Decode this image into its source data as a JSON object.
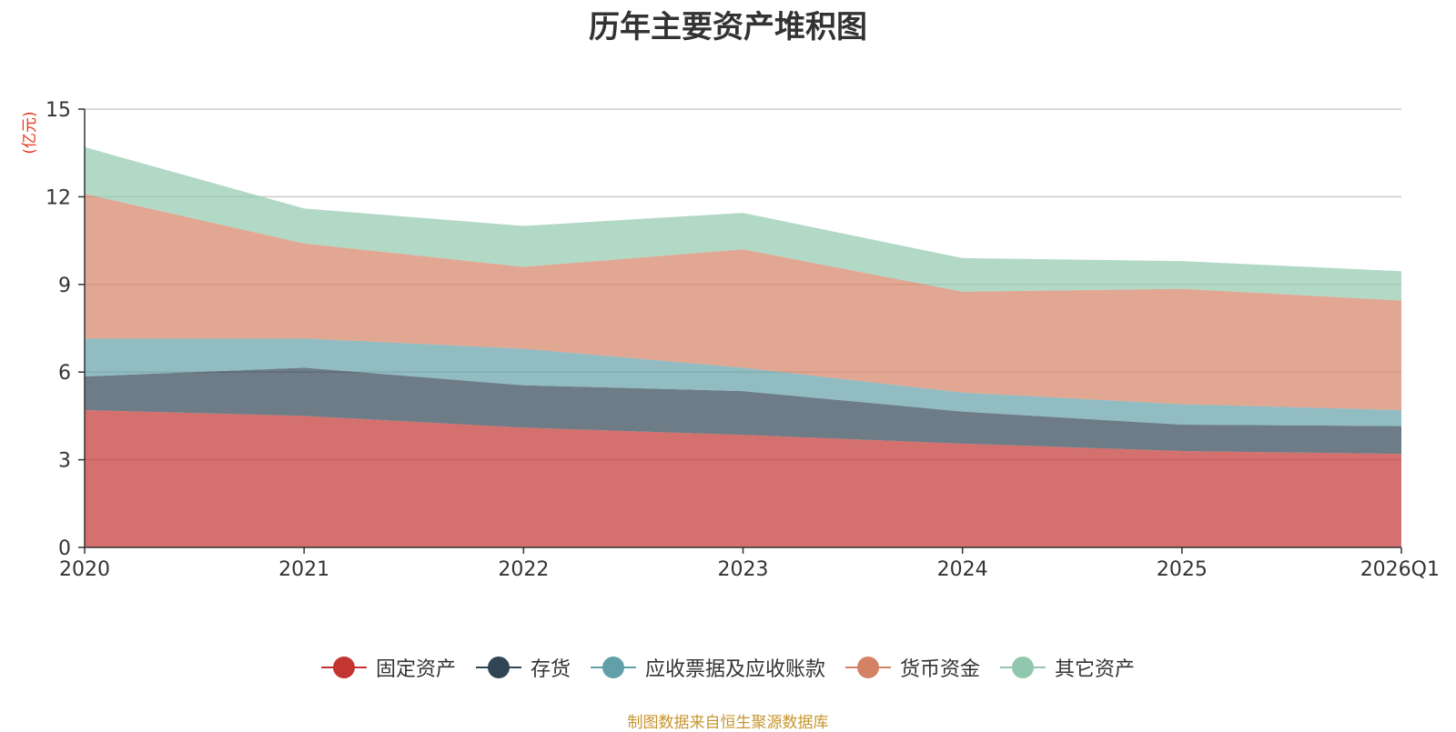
{
  "chart_data": {
    "type": "area",
    "stacked": true,
    "title": "历年主要资产堆积图",
    "ylabel": "(亿元)",
    "xlabel": "",
    "ylim": [
      0,
      15
    ],
    "yticks": [
      0,
      3,
      6,
      9,
      12,
      15
    ],
    "categories": [
      "2020",
      "2021",
      "2022",
      "2023",
      "2024",
      "2025",
      "2026Q1"
    ],
    "series": [
      {
        "name": "固定资产",
        "color": "#c23531",
        "values": [
          4.7,
          4.5,
          4.1,
          3.85,
          3.55,
          3.3,
          3.2
        ]
      },
      {
        "name": "存货",
        "color": "#2f4554",
        "values": [
          1.15,
          1.65,
          1.45,
          1.5,
          1.1,
          0.9,
          0.95
        ]
      },
      {
        "name": "应收票据及应收账款",
        "color": "#61a0a8",
        "values": [
          1.3,
          1.0,
          1.25,
          0.8,
          0.65,
          0.7,
          0.55
        ]
      },
      {
        "name": "货币资金",
        "color": "#d48265",
        "values": [
          4.95,
          3.25,
          2.8,
          4.05,
          3.45,
          3.95,
          3.75
        ]
      },
      {
        "name": "其它资产",
        "color": "#91c7ae",
        "values": [
          1.6,
          1.2,
          1.4,
          1.25,
          1.15,
          0.95,
          1.0
        ]
      }
    ],
    "grid": true,
    "legend_position": "bottom"
  },
  "source_note": "制图数据来自恒生聚源数据库"
}
